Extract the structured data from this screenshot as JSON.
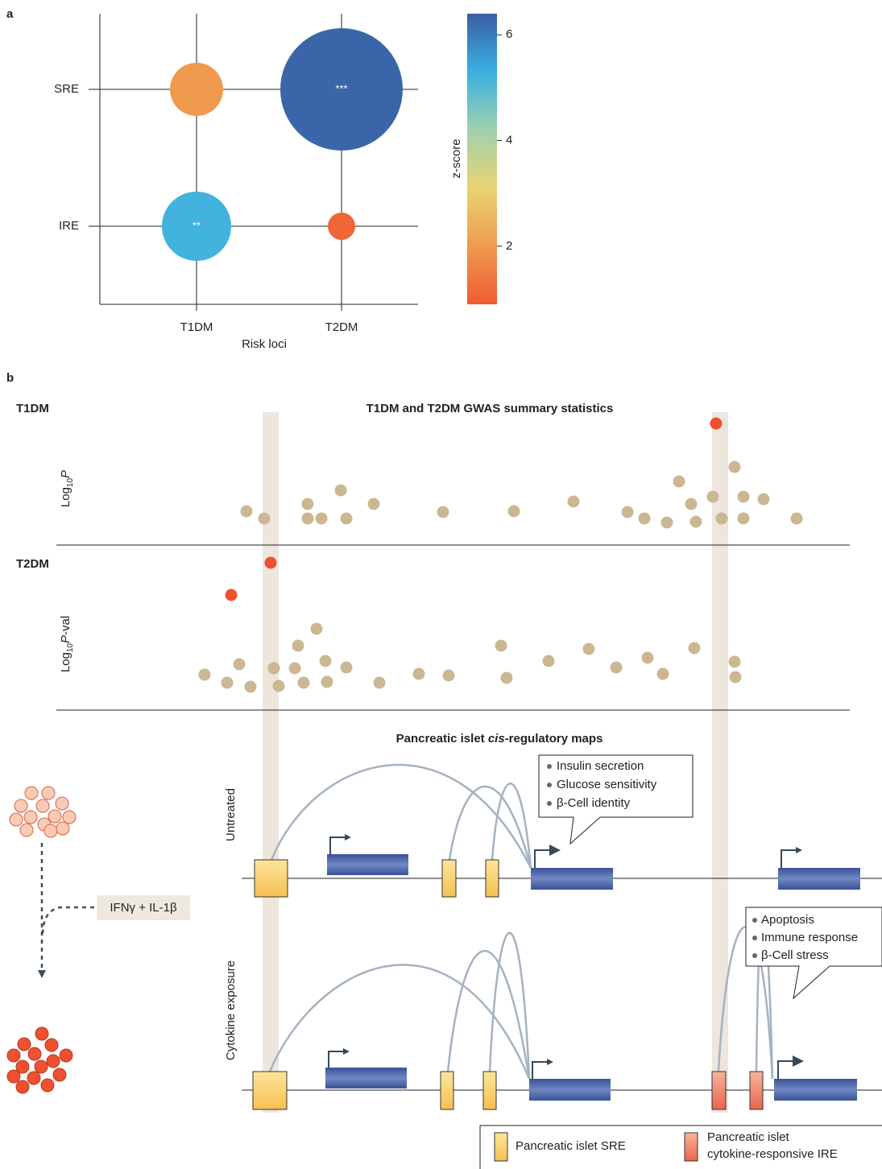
{
  "chart_data": {
    "type": "bubble",
    "panel_label": "a",
    "categories": [
      "T1DM",
      "T2DM"
    ],
    "rows": [
      "SRE",
      "IRE"
    ],
    "xlabel": "Risk loci",
    "points": [
      {
        "x": 0,
        "row": 0,
        "z": 2.0,
        "size": 33
      },
      {
        "x": 1,
        "row": 0,
        "z": 6.3,
        "size": 76,
        "label": "***"
      },
      {
        "x": 0,
        "row": 1,
        "z": 5.2,
        "size": 43,
        "label": "**"
      },
      {
        "x": 1,
        "row": 1,
        "z": 1.1,
        "size": 17
      }
    ],
    "colorbar": {
      "label": "z-score",
      "lim": [
        0.9,
        6.4
      ],
      "ticks": [
        2,
        4,
        6
      ],
      "colors": [
        "#f05a32",
        "#ef9a4f",
        "#e9d474",
        "#9fd1ad",
        "#38b0e2",
        "#3b5ea3"
      ]
    }
  },
  "panel_b": {
    "label": "b",
    "title": "T1DM and T2DM GWAS summary statistics",
    "t1dm": {
      "name": "T1DM",
      "ylabel": {
        "base": "Log",
        "sub": "10",
        "var": "P"
      }
    },
    "t2dm": {
      "name": "T2DM",
      "ylabel": {
        "base": "Log",
        "sub": "10",
        "var": "P",
        "suffix": "-val"
      }
    },
    "maps_title": {
      "before": "Pancreatic islet ",
      "italic": "cis",
      "after": "-regulatory maps"
    },
    "untreated": {
      "label": "Untreated",
      "callout": [
        "Insulin secretion",
        "Glucose sensitivity",
        "β-Cell identity"
      ]
    },
    "cytokine": {
      "label": "Cytokine exposure",
      "callout": [
        "Apoptosis",
        "Immune response",
        "β-Cell stress"
      ]
    },
    "treatment": "IFNγ + IL-1β",
    "legend": {
      "sre": "Pancreatic islet SRE",
      "ire": [
        "Pancreatic islet",
        "cytokine-responsive IRE"
      ]
    }
  }
}
